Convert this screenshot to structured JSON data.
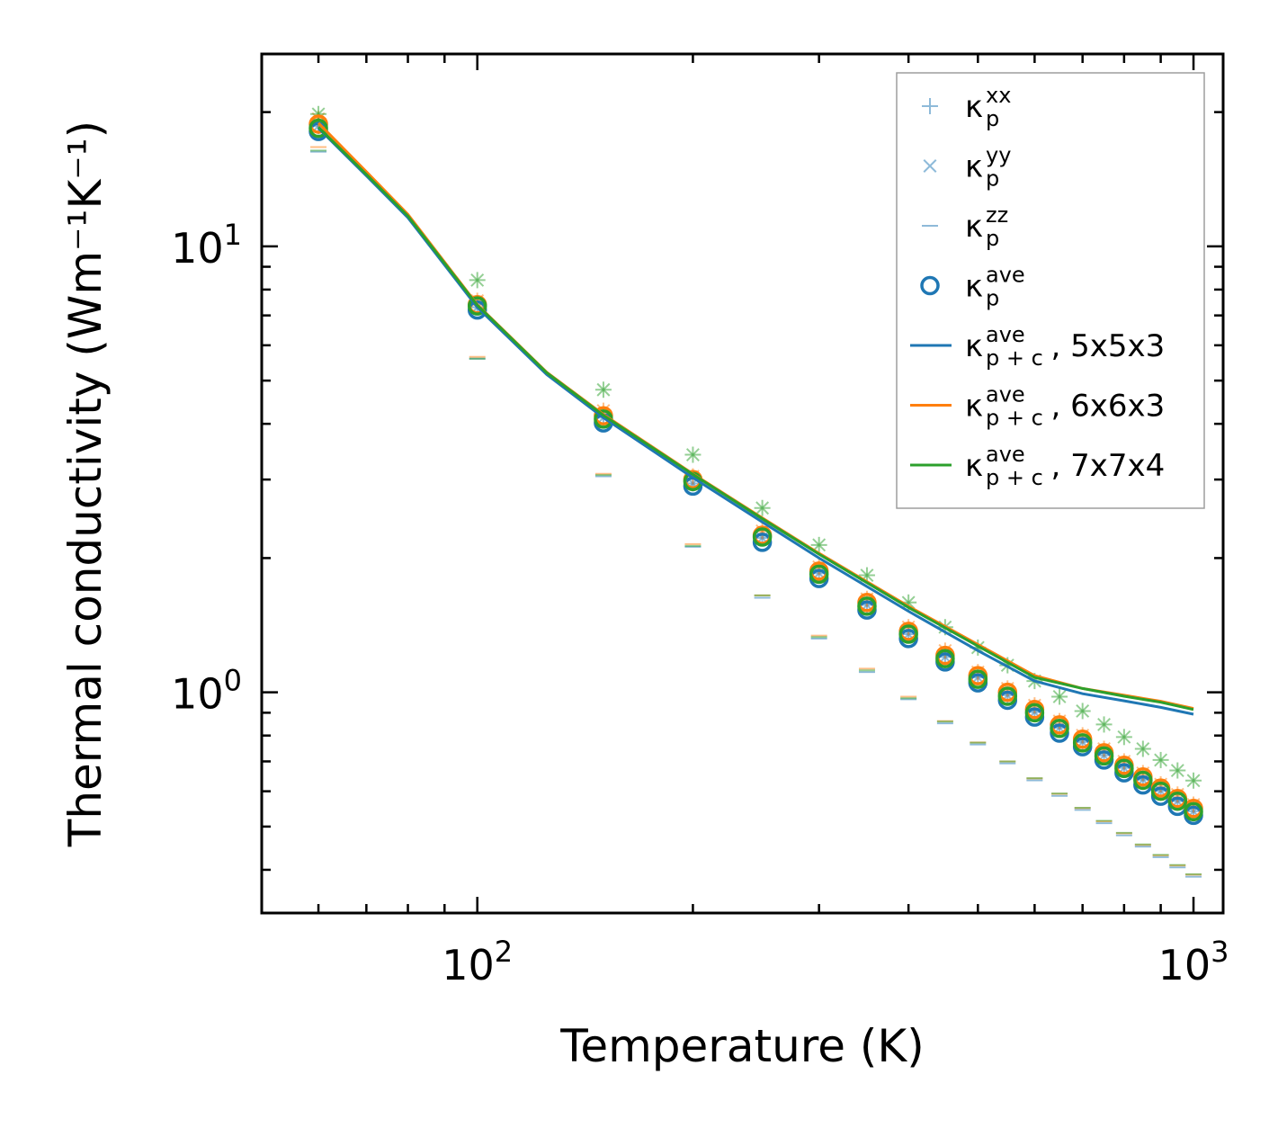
{
  "chart_data": {
    "type": "scatter",
    "xscale": "log",
    "yscale": "log",
    "xlim": [
      50,
      1100
    ],
    "ylim": [
      0.32,
      27
    ],
    "xlabel": "Temperature (K)",
    "ylabel": "Thermal conductivity (Wm⁻¹K⁻¹)",
    "x_ticks": [
      {
        "value": 100,
        "base": "10",
        "exp": "2"
      },
      {
        "value": 1000,
        "base": "10",
        "exp": "3"
      }
    ],
    "y_ticks": [
      {
        "value": 1,
        "base": "10",
        "exp": "0"
      },
      {
        "value": 10,
        "base": "10",
        "exp": "1"
      }
    ],
    "legend_position": "top-right",
    "colors": {
      "blue": "#1f77b4",
      "orange": "#ff7f0e",
      "green": "#2ca02c"
    },
    "temperatures": [
      60,
      100,
      150,
      200,
      250,
      300,
      350,
      400,
      450,
      500,
      550,
      600,
      650,
      700,
      750,
      800,
      850,
      900,
      950,
      1000
    ],
    "series": [
      {
        "name": "5x5x3",
        "color": "#1f77b4",
        "marker_kind": "components",
        "xx": [
          18.6,
          7.3,
          4.13,
          2.94,
          2.22,
          1.85,
          1.57,
          1.35,
          1.2,
          1.08,
          0.985,
          0.903,
          0.833,
          0.774,
          0.722,
          0.677,
          0.637,
          0.601,
          0.57,
          0.541
        ],
        "yy": [
          18.6,
          7.3,
          4.13,
          2.94,
          2.22,
          1.85,
          1.57,
          1.35,
          1.2,
          1.08,
          0.985,
          0.903,
          0.833,
          0.774,
          0.722,
          0.677,
          0.637,
          0.601,
          0.57,
          0.541
        ],
        "zz": [
          16.3,
          5.6,
          3.05,
          2.12,
          1.63,
          1.32,
          1.11,
          0.965,
          0.852,
          0.764,
          0.693,
          0.635,
          0.586,
          0.545,
          0.509,
          0.478,
          0.451,
          0.427,
          0.405,
          0.386
        ],
        "ave": [
          18.1,
          7.2,
          4.02,
          2.9,
          2.17,
          1.8,
          1.53,
          1.32,
          1.17,
          1.05,
          0.96,
          0.88,
          0.81,
          0.755,
          0.705,
          0.66,
          0.62,
          0.585,
          0.555,
          0.53
        ]
      },
      {
        "name": "6x6x3",
        "color": "#ff7f0e",
        "marker_kind": "components",
        "xx": [
          19.3,
          7.55,
          4.28,
          3.05,
          2.3,
          1.91,
          1.62,
          1.4,
          1.24,
          1.11,
          1.02,
          0.935,
          0.862,
          0.801,
          0.747,
          0.7,
          0.659,
          0.622,
          0.59,
          0.56
        ],
        "yy": [
          19.3,
          7.55,
          4.28,
          3.05,
          2.3,
          1.91,
          1.62,
          1.4,
          1.24,
          1.11,
          1.02,
          0.935,
          0.862,
          0.801,
          0.747,
          0.7,
          0.659,
          0.622,
          0.59,
          0.56
        ],
        "zz": [
          16.7,
          5.65,
          3.09,
          2.15,
          1.65,
          1.34,
          1.13,
          0.978,
          0.862,
          0.772,
          0.7,
          0.641,
          0.592,
          0.55,
          0.514,
          0.483,
          0.455,
          0.431,
          0.409,
          0.39
        ],
        "ave": [
          18.8,
          7.4,
          4.17,
          3.0,
          2.25,
          1.87,
          1.59,
          1.37,
          1.21,
          1.09,
          1.0,
          0.915,
          0.845,
          0.785,
          0.732,
          0.686,
          0.646,
          0.61,
          0.578,
          0.549
        ]
      },
      {
        "name": "7x7x4",
        "color": "#2ca02c",
        "marker_kind": "components",
        "xx": [
          19.8,
          8.4,
          4.77,
          3.41,
          2.59,
          2.14,
          1.83,
          1.59,
          1.4,
          1.26,
          1.15,
          1.06,
          0.978,
          0.908,
          0.847,
          0.794,
          0.747,
          0.705,
          0.668,
          0.634
        ],
        "yy": [
          19.8,
          8.4,
          4.77,
          3.41,
          2.59,
          2.14,
          1.83,
          1.59,
          1.4,
          1.26,
          1.15,
          1.06,
          0.978,
          0.908,
          0.847,
          0.794,
          0.747,
          0.705,
          0.668,
          0.634
        ],
        "zz": [
          16.4,
          5.6,
          3.07,
          2.13,
          1.65,
          1.33,
          1.12,
          0.97,
          0.86,
          0.771,
          0.7,
          0.642,
          0.593,
          0.551,
          0.515,
          0.484,
          0.456,
          0.432,
          0.41,
          0.391
        ],
        "ave": [
          18.4,
          7.35,
          4.1,
          2.97,
          2.23,
          1.84,
          1.56,
          1.35,
          1.19,
          1.07,
          0.98,
          0.9,
          0.83,
          0.77,
          0.72,
          0.675,
          0.635,
          0.6,
          0.57,
          0.54
        ]
      }
    ],
    "lines": [
      {
        "name": "5x5x3",
        "color": "#1f77b4",
        "x": [
          60,
          70,
          80,
          100,
          125,
          150,
          200,
          250,
          300,
          400,
          500,
          600,
          700,
          800,
          900,
          1000
        ],
        "y": [
          18.4,
          14.4,
          11.6,
          7.3,
          5.16,
          4.13,
          3.03,
          2.41,
          2.0,
          1.52,
          1.24,
          1.06,
          0.993,
          0.957,
          0.925,
          0.893
        ]
      },
      {
        "name": "6x6x3",
        "color": "#ff7f0e",
        "x": [
          60,
          70,
          80,
          100,
          125,
          150,
          200,
          250,
          300,
          400,
          500,
          600,
          700,
          800,
          900,
          1000
        ],
        "y": [
          18.9,
          14.7,
          11.8,
          7.4,
          5.22,
          4.2,
          3.09,
          2.46,
          2.05,
          1.56,
          1.28,
          1.09,
          1.02,
          0.985,
          0.955,
          0.92
        ]
      },
      {
        "name": "7x7x4",
        "color": "#2ca02c",
        "x": [
          60,
          70,
          80,
          100,
          125,
          150,
          200,
          250,
          300,
          400,
          500,
          600,
          700,
          800,
          900,
          1000
        ],
        "y": [
          18.5,
          14.5,
          11.7,
          7.38,
          5.21,
          4.18,
          3.08,
          2.45,
          2.04,
          1.55,
          1.27,
          1.08,
          1.02,
          0.98,
          0.95,
          0.915
        ]
      }
    ],
    "legend": [
      {
        "kind": "plus",
        "color": "#1f77b4",
        "alpha": 0.5,
        "symbol": "κ",
        "sub": "p",
        "sup": "xx",
        "suffix": ""
      },
      {
        "kind": "x",
        "color": "#1f77b4",
        "alpha": 0.5,
        "symbol": "κ",
        "sub": "p",
        "sup": "yy",
        "suffix": ""
      },
      {
        "kind": "minus",
        "color": "#1f77b4",
        "alpha": 0.5,
        "symbol": "κ",
        "sub": "p",
        "sup": "zz",
        "suffix": ""
      },
      {
        "kind": "circle",
        "color": "#1f77b4",
        "alpha": 1,
        "symbol": "κ",
        "sub": "p",
        "sup": "ave",
        "suffix": ""
      },
      {
        "kind": "line",
        "color": "#1f77b4",
        "alpha": 1,
        "symbol": "κ",
        "sub": "p + c",
        "sup": "ave",
        "suffix": ", 5x5x3"
      },
      {
        "kind": "line",
        "color": "#ff7f0e",
        "alpha": 1,
        "symbol": "κ",
        "sub": "p + c",
        "sup": "ave",
        "suffix": ", 6x6x3"
      },
      {
        "kind": "line",
        "color": "#2ca02c",
        "alpha": 1,
        "symbol": "κ",
        "sub": "p + c",
        "sup": "ave",
        "suffix": ", 7x7x4"
      }
    ]
  }
}
